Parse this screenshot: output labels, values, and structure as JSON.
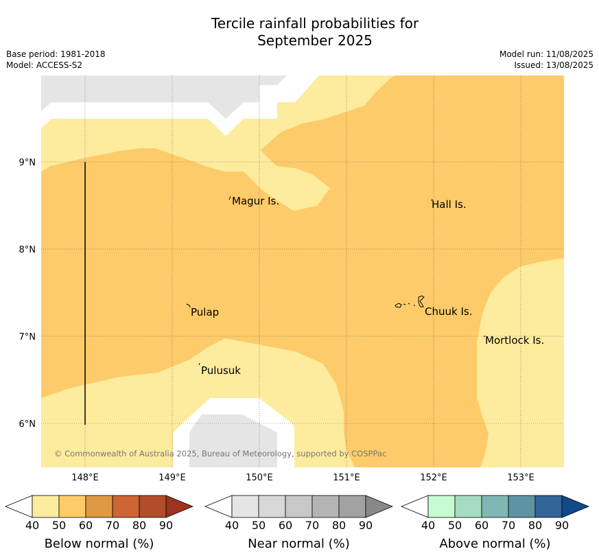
{
  "title": {
    "line1": "Tercile rainfall probabilities for",
    "line2": "September 2025"
  },
  "info": {
    "base_period": "Base period: 1981-2018",
    "model": "Model: ACCESS-S2",
    "model_run": "Model run: 11/08/2025",
    "issued": "Issued: 13/08/2025"
  },
  "map": {
    "x_ticks": [
      "148°E",
      "149°E",
      "150°E",
      "151°E",
      "152°E",
      "153°E"
    ],
    "y_ticks": [
      "9°N",
      "8°N",
      "7°N",
      "6°N"
    ],
    "places": [
      "Magur Is.",
      "Hall Is.",
      "Pulap",
      "Chuuk Is.",
      "Mortlock Is.",
      "Pulusuk"
    ],
    "copyright": "© Commonwealth of Australia 2025, Bureau of Meteorology, supported by COSPPac",
    "colors": {
      "below_40_50": "#fdeb9e",
      "below_50_60": "#fdcb69",
      "near_40_50": "#e5e5e5",
      "background": "#ffffff"
    }
  },
  "legends": [
    {
      "label": "Below normal (%)",
      "ticks": [
        "40",
        "50",
        "60",
        "70",
        "80",
        "90"
      ],
      "colors": [
        "#ffffff",
        "#fdeb9e",
        "#fdcb69",
        "#e09845",
        "#cd6535",
        "#b14d2a",
        "#9c3420"
      ]
    },
    {
      "label": "Near normal (%)",
      "ticks": [
        "40",
        "50",
        "60",
        "70",
        "80",
        "90"
      ],
      "colors": [
        "#ffffff",
        "#e5e5e5",
        "#d8d8d8",
        "#c8c8c8",
        "#b4b4b4",
        "#a2a2a2",
        "#888888"
      ]
    },
    {
      "label": "Above normal (%)",
      "ticks": [
        "40",
        "50",
        "60",
        "70",
        "80",
        "90"
      ],
      "colors": [
        "#ffffff",
        "#c7fbd0",
        "#a6dcc1",
        "#80b6b3",
        "#5e93a3",
        "#33649a",
        "#104a88"
      ]
    }
  ]
}
